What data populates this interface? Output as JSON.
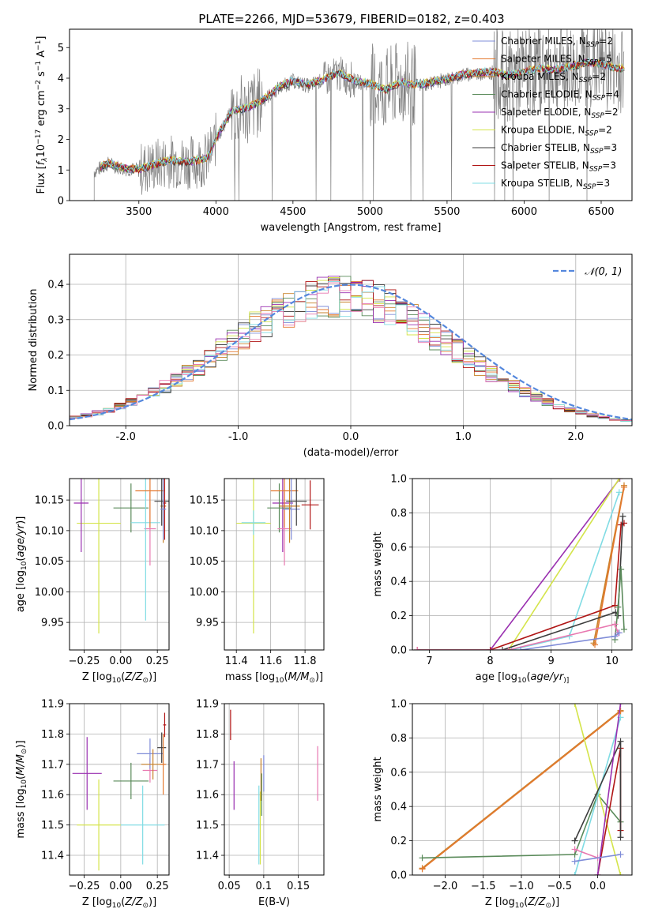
{
  "figure": {
    "title": "PLATE=2266, MJD=53679, FIBERID=0182, z=0.403"
  },
  "colors": {
    "chabrier_miles": "#7f8cd8",
    "salpeter_miles": "#e47a30",
    "kroupa_miles": "#c8822a",
    "chabrier_elodie": "#5a8a5a",
    "salpeter_elodie": "#9a30b0",
    "kroupa_elodie": "#d4e44a",
    "chabrier_stelib": "#3c3c3c",
    "salpeter_stelib": "#b01515",
    "kroupa_stelib": "#80dce4",
    "pink": "#e878b0",
    "normal": "#5588dd",
    "data": "#808080"
  },
  "legend": [
    {
      "key": "chabrier_miles",
      "label": "Chabrier MILES, N",
      "sub": "SSP",
      "n": "=2"
    },
    {
      "key": "salpeter_miles",
      "label": "Salpeter MILES, N",
      "sub": "SSP",
      "n": "=5"
    },
    {
      "key": "kroupa_miles",
      "label": "Kroupa MILES, N",
      "sub": "SSP",
      "n": "=2"
    },
    {
      "key": "chabrier_elodie",
      "label": "Chabrier ELODIE, N",
      "sub": "SSP",
      "n": "=4"
    },
    {
      "key": "salpeter_elodie",
      "label": "Salpeter ELODIE, N",
      "sub": "SSP",
      "n": "=2"
    },
    {
      "key": "kroupa_elodie",
      "label": "Kroupa ELODIE, N",
      "sub": "SSP",
      "n": "=2"
    },
    {
      "key": "chabrier_stelib",
      "label": "Chabrier STELIB, N",
      "sub": "SSP",
      "n": "=3"
    },
    {
      "key": "salpeter_stelib",
      "label": "Salpeter STELIB, N",
      "sub": "SSP",
      "n": "=3"
    },
    {
      "key": "kroupa_stelib",
      "label": "Kroupa STELIB, N",
      "sub": "SSP",
      "n": "=3"
    }
  ],
  "chart_data": [
    {
      "id": "spectrum",
      "type": "line",
      "xlabel": "wavelength [Angstrom, rest frame]",
      "ylabel_parts": [
        "Flux [",
        "f",
        "λ",
        "10",
        "−17",
        " erg cm",
        "−2",
        " s",
        "−1",
        " A",
        "−1",
        "]"
      ],
      "xlim": [
        3050,
        6700
      ],
      "ylim": [
        0,
        5.6
      ],
      "xticks": [
        3500,
        4000,
        4500,
        5000,
        5500,
        6000,
        6500
      ],
      "yticks": [
        0,
        1,
        2,
        3,
        4,
        5
      ],
      "grid": false,
      "legend_position": "upper right",
      "data_start": 3210,
      "model_start": 3250,
      "continuum": [
        [
          3210,
          0.95
        ],
        [
          3300,
          1.2
        ],
        [
          3400,
          1.05
        ],
        [
          3500,
          1.0
        ],
        [
          3600,
          1.15
        ],
        [
          3700,
          1.3
        ],
        [
          3800,
          1.25
        ],
        [
          3900,
          1.3
        ],
        [
          3950,
          1.4
        ],
        [
          4000,
          2.0
        ],
        [
          4100,
          2.9
        ],
        [
          4200,
          3.0
        ],
        [
          4300,
          3.25
        ],
        [
          4400,
          3.65
        ],
        [
          4500,
          3.9
        ],
        [
          4600,
          3.75
        ],
        [
          4700,
          3.95
        ],
        [
          4800,
          4.15
        ],
        [
          4900,
          3.9
        ],
        [
          5000,
          3.8
        ],
        [
          5100,
          3.6
        ],
        [
          5200,
          3.85
        ],
        [
          5300,
          3.75
        ],
        [
          5400,
          3.85
        ],
        [
          5500,
          3.95
        ],
        [
          5600,
          4.1
        ],
        [
          5700,
          4.15
        ],
        [
          5800,
          4.2
        ],
        [
          5900,
          4.05
        ],
        [
          6000,
          4.2
        ],
        [
          6100,
          4.3
        ],
        [
          6200,
          4.25
        ],
        [
          6300,
          4.35
        ],
        [
          6400,
          4.5
        ],
        [
          6500,
          4.45
        ],
        [
          6600,
          4.3
        ]
      ]
    },
    {
      "id": "residuals",
      "type": "histogram",
      "xlabel": "(data-model)/error",
      "ylabel": "Normed distribution",
      "xlim": [
        -2.5,
        2.5
      ],
      "ylim": [
        0,
        0.485
      ],
      "xticks": [
        -2,
        -1,
        0,
        1,
        2
      ],
      "yticks": [
        0.0,
        0.1,
        0.2,
        0.3,
        0.4
      ],
      "grid": true,
      "bins": 50,
      "legend": [
        {
          "name": "𝒩(0, 1)",
          "style": "dashed"
        }
      ]
    },
    {
      "id": "age_vs_Z",
      "type": "errorbar",
      "xlabel_parts": [
        "Z [log",
        "10",
        "(",
        "Z/Z",
        "⊙",
        ")]"
      ],
      "ylabel_parts": [
        "age  [log",
        "10",
        "(",
        "age/yr",
        ")]"
      ],
      "xlim": [
        -0.35,
        0.33
      ],
      "ylim": [
        9.905,
        10.185
      ],
      "xticks": [
        -0.25,
        0.0,
        0.25
      ],
      "yticks": [
        9.95,
        10.0,
        10.05,
        10.1,
        10.15
      ],
      "grid": true,
      "points": [
        {
          "c": "kroupa_elodie",
          "x": -0.15,
          "xe": 0.15,
          "y": 10.112,
          "ye": 0.18
        },
        {
          "c": "salpeter_elodie",
          "x": -0.27,
          "xe": 0.05,
          "y": 10.145,
          "ye": 0.08
        },
        {
          "c": "chabrier_elodie",
          "x": 0.07,
          "xe": 0.12,
          "y": 10.137,
          "ye": 0.04
        },
        {
          "c": "pink",
          "x": 0.2,
          "xe": 0.04,
          "y": 10.103,
          "ye": 0.06
        },
        {
          "c": "kroupa_stelib",
          "x": 0.17,
          "xe": 0.1,
          "y": 10.113,
          "ye": 0.16
        },
        {
          "c": "salpeter_miles",
          "x": 0.2,
          "xe": 0.1,
          "y": 10.165,
          "ye": 0.06
        },
        {
          "c": "kroupa_miles",
          "x": 0.29,
          "xe": 0.02,
          "y": 10.14,
          "ye": 0.06
        },
        {
          "c": "chabrier_stelib",
          "x": 0.28,
          "xe": 0.05,
          "y": 10.148,
          "ye": 0.04
        },
        {
          "c": "salpeter_stelib",
          "x": 0.3,
          "xe": 0.01,
          "y": 10.145,
          "ye": 0.06
        },
        {
          "c": "chabrier_miles",
          "x": 0.29,
          "xe": 0.02,
          "y": 10.135,
          "ye": 0.05
        }
      ]
    },
    {
      "id": "age_vs_mass",
      "type": "errorbar",
      "xlabel_parts": [
        "mass [log",
        "10",
        "(",
        "M/M",
        "⊙",
        ")]"
      ],
      "ylabel_parts": [],
      "xlim": [
        11.33,
        11.91
      ],
      "ylim": [
        9.905,
        10.185
      ],
      "xticks": [
        11.4,
        11.6,
        11.8
      ],
      "yticks": [
        9.95,
        10.0,
        10.05,
        10.1,
        10.15
      ],
      "grid": true,
      "points": [
        {
          "c": "kroupa_elodie",
          "x": 11.5,
          "xe": 0.1,
          "y": 10.112,
          "ye": 0.18
        },
        {
          "c": "kroupa_stelib",
          "x": 11.5,
          "xe": 0.07,
          "y": 10.113,
          "ye": 0.02
        },
        {
          "c": "salpeter_elodie",
          "x": 11.67,
          "xe": 0.06,
          "y": 10.145,
          "ye": 0.08
        },
        {
          "c": "chabrier_elodie",
          "x": 11.65,
          "xe": 0.07,
          "y": 10.137,
          "ye": 0.04
        },
        {
          "c": "pink",
          "x": 11.68,
          "xe": 0.04,
          "y": 10.103,
          "ye": 0.06
        },
        {
          "c": "salpeter_miles",
          "x": 11.68,
          "xe": 0.08,
          "y": 10.165,
          "ye": 0.06
        },
        {
          "c": "chabrier_miles",
          "x": 11.72,
          "xe": 0.05,
          "y": 10.135,
          "ye": 0.05
        },
        {
          "c": "kroupa_miles",
          "x": 11.71,
          "xe": 0.06,
          "y": 10.14,
          "ye": 0.06
        },
        {
          "c": "chabrier_stelib",
          "x": 11.75,
          "xe": 0.06,
          "y": 10.148,
          "ye": 0.04
        },
        {
          "c": "salpeter_stelib",
          "x": 11.83,
          "xe": 0.05,
          "y": 10.142,
          "ye": 0.04
        }
      ]
    },
    {
      "id": "weight_vs_age",
      "type": "line",
      "xlabel_parts": [
        "age  [log",
        "10",
        "(",
        "age/yr",
        ")]"
      ],
      "ylabel": "mass weight",
      "xlim": [
        6.72,
        10.33
      ],
      "ylim": [
        0,
        1
      ],
      "xticks": [
        7,
        8,
        9,
        10
      ],
      "yticks": [
        0.0,
        0.2,
        0.4,
        0.6,
        0.8,
        1.0
      ],
      "grid": true,
      "series": [
        {
          "c": "salpeter_elodie",
          "pts": [
            [
              8.0,
              0.0
            ],
            [
              10.13,
              1.0
            ]
          ]
        },
        {
          "c": "kroupa_elodie",
          "pts": [
            [
              8.3,
              0.0
            ],
            [
              10.12,
              1.0
            ]
          ]
        },
        {
          "c": "kroupa_stelib",
          "pts": [
            [
              8.35,
              0.0
            ],
            [
              9.3,
              0.08
            ],
            [
              10.12,
              0.92
            ]
          ]
        },
        {
          "c": "kroupa_miles",
          "pts": [
            [
              9.7,
              0.04
            ],
            [
              10.2,
              0.96
            ]
          ]
        },
        {
          "c": "salpeter_miles",
          "pts": [
            [
              9.72,
              0.03
            ],
            [
              10.2,
              0.95
            ]
          ]
        },
        {
          "c": "salpeter_stelib",
          "pts": [
            [
              6.8,
              0.0
            ],
            [
              8.0,
              0.0
            ],
            [
              10.05,
              0.26
            ],
            [
              10.15,
              0.73
            ],
            [
              10.2,
              0.74
            ]
          ]
        },
        {
          "c": "chabrier_stelib",
          "pts": [
            [
              8.2,
              0.0
            ],
            [
              10.06,
              0.22
            ],
            [
              10.1,
              0.2
            ],
            [
              10.18,
              0.78
            ]
          ]
        },
        {
          "c": "chabrier_elodie",
          "pts": [
            [
              10.05,
              0.06
            ],
            [
              10.1,
              0.25
            ],
            [
              10.15,
              0.47
            ],
            [
              10.2,
              0.12
            ]
          ]
        },
        {
          "c": "pink",
          "pts": [
            [
              6.8,
              0.0
            ],
            [
              8.3,
              0.0
            ],
            [
              10.05,
              0.15
            ],
            [
              10.1,
              0.1
            ]
          ]
        },
        {
          "c": "chabrier_miles",
          "pts": [
            [
              8.5,
              0.0
            ],
            [
              10.05,
              0.08
            ],
            [
              10.12,
              0.1
            ]
          ]
        }
      ]
    },
    {
      "id": "mass_vs_Z",
      "type": "errorbar",
      "xlabel_parts": [
        "Z [log",
        "10",
        "(",
        "Z/Z",
        "⊙",
        ")]"
      ],
      "ylabel_parts": [
        "mass [log",
        "10",
        "(",
        "M/M",
        "⊙",
        ")]"
      ],
      "xlim": [
        -0.35,
        0.33
      ],
      "ylim": [
        11.335,
        11.9
      ],
      "xticks": [
        -0.25,
        0.0,
        0.25
      ],
      "yticks": [
        11.4,
        11.5,
        11.6,
        11.7,
        11.8,
        11.9
      ],
      "grid": true,
      "points": [
        {
          "c": "kroupa_elodie",
          "x": -0.15,
          "xe": 0.15,
          "y": 11.5,
          "ye": 0.15
        },
        {
          "c": "kroupa_stelib",
          "x": 0.15,
          "xe": 0.15,
          "y": 11.5,
          "ye": 0.13
        },
        {
          "c": "salpeter_elodie",
          "x": -0.23,
          "xe": 0.1,
          "y": 11.67,
          "ye": 0.12
        },
        {
          "c": "chabrier_elodie",
          "x": 0.07,
          "xe": 0.12,
          "y": 11.645,
          "ye": 0.06
        },
        {
          "c": "pink",
          "x": 0.2,
          "xe": 0.05,
          "y": 11.68,
          "ye": 0.04
        },
        {
          "c": "chabrier_miles",
          "x": 0.2,
          "xe": 0.09,
          "y": 11.735,
          "ye": 0.05
        },
        {
          "c": "kroupa_miles",
          "x": 0.22,
          "xe": 0.08,
          "y": 11.7,
          "ye": 0.05
        },
        {
          "c": "chabrier_stelib",
          "x": 0.28,
          "xe": 0.03,
          "y": 11.755,
          "ye": 0.05
        },
        {
          "c": "salpeter_miles",
          "x": 0.29,
          "xe": 0.02,
          "y": 11.7,
          "ye": 0.1
        },
        {
          "c": "salpeter_stelib",
          "x": 0.3,
          "xe": 0.01,
          "y": 11.83,
          "ye": 0.04
        }
      ]
    },
    {
      "id": "mass_vs_ebv",
      "type": "errorbar",
      "xlabel": "E(B-V)",
      "ylabel_parts": [],
      "xlim": [
        0.043,
        0.187
      ],
      "ylim": [
        11.335,
        11.9
      ],
      "xticks": [
        0.05,
        0.1,
        0.15
      ],
      "yticks": [
        11.4,
        11.5,
        11.6,
        11.7,
        11.8,
        11.9
      ],
      "grid": true,
      "points": [
        {
          "c": "salpeter_stelib",
          "x": 0.052,
          "xe": 0.0,
          "y": 11.83,
          "ye": 0.05
        },
        {
          "c": "salpeter_elodie",
          "x": 0.057,
          "xe": 0.0,
          "y": 11.63,
          "ye": 0.08
        },
        {
          "c": "kroupa_stelib",
          "x": 0.093,
          "xe": 0.0,
          "y": 11.5,
          "ye": 0.13
        },
        {
          "c": "kroupa_elodie",
          "x": 0.095,
          "xe": 0.0,
          "y": 11.49,
          "ye": 0.12
        },
        {
          "c": "kroupa_miles",
          "x": 0.096,
          "xe": 0.0,
          "y": 11.65,
          "ye": 0.07
        },
        {
          "c": "chabrier_elodie",
          "x": 0.097,
          "xe": 0.0,
          "y": 11.6,
          "ye": 0.07
        },
        {
          "c": "chabrier_miles",
          "x": 0.1,
          "xe": 0.0,
          "y": 11.67,
          "ye": 0.06
        },
        {
          "c": "pink",
          "x": 0.178,
          "xe": 0.0,
          "y": 11.67,
          "ye": 0.09
        }
      ]
    },
    {
      "id": "weight_vs_Z",
      "type": "line",
      "xlabel_parts": [
        "Z [log",
        "10",
        "(",
        "Z/Z",
        "⊙",
        ")]"
      ],
      "ylabel": "mass weight",
      "xlim": [
        -2.43,
        0.45
      ],
      "ylim": [
        0,
        1
      ],
      "xticks": [
        -2.0,
        -1.5,
        -1.0,
        -0.5,
        0.0
      ],
      "yticks": [
        0.0,
        0.2,
        0.4,
        0.6,
        0.8,
        1.0
      ],
      "grid": true,
      "series": [
        {
          "c": "kroupa_miles",
          "pts": [
            [
              -2.3,
              0.04
            ],
            [
              0.3,
              0.96
            ]
          ]
        },
        {
          "c": "salpeter_miles",
          "pts": [
            [
              -2.3,
              0.035
            ],
            [
              0.3,
              0.955
            ]
          ]
        },
        {
          "c": "chabrier_elodie",
          "pts": [
            [
              -2.3,
              0.1
            ],
            [
              -0.3,
              0.12
            ],
            [
              -0.0,
              0.47
            ],
            [
              0.3,
              0.31
            ]
          ]
        },
        {
          "c": "kroupa_elodie",
          "pts": [
            [
              -0.3,
              1.0
            ],
            [
              0.3,
              0.0
            ]
          ]
        },
        {
          "c": "kroupa_stelib",
          "pts": [
            [
              -0.3,
              0.0
            ],
            [
              0.3,
              0.92
            ]
          ]
        },
        {
          "c": "salpeter_stelib",
          "pts": [
            [
              0.0,
              0.0
            ],
            [
              0.3,
              0.74
            ],
            [
              0.3,
              0.26
            ]
          ]
        },
        {
          "c": "chabrier_stelib",
          "pts": [
            [
              -0.3,
              0.2
            ],
            [
              0.3,
              0.78
            ],
            [
              0.3,
              0.22
            ]
          ]
        },
        {
          "c": "salpeter_elodie",
          "pts": [
            [
              0.0,
              0.0
            ],
            [
              0.3,
              1.0
            ]
          ]
        },
        {
          "c": "pink",
          "pts": [
            [
              -0.3,
              0.15
            ],
            [
              0.0,
              0.1
            ]
          ]
        },
        {
          "c": "chabrier_miles",
          "pts": [
            [
              -0.3,
              0.08
            ],
            [
              0.3,
              0.12
            ]
          ]
        }
      ]
    }
  ]
}
